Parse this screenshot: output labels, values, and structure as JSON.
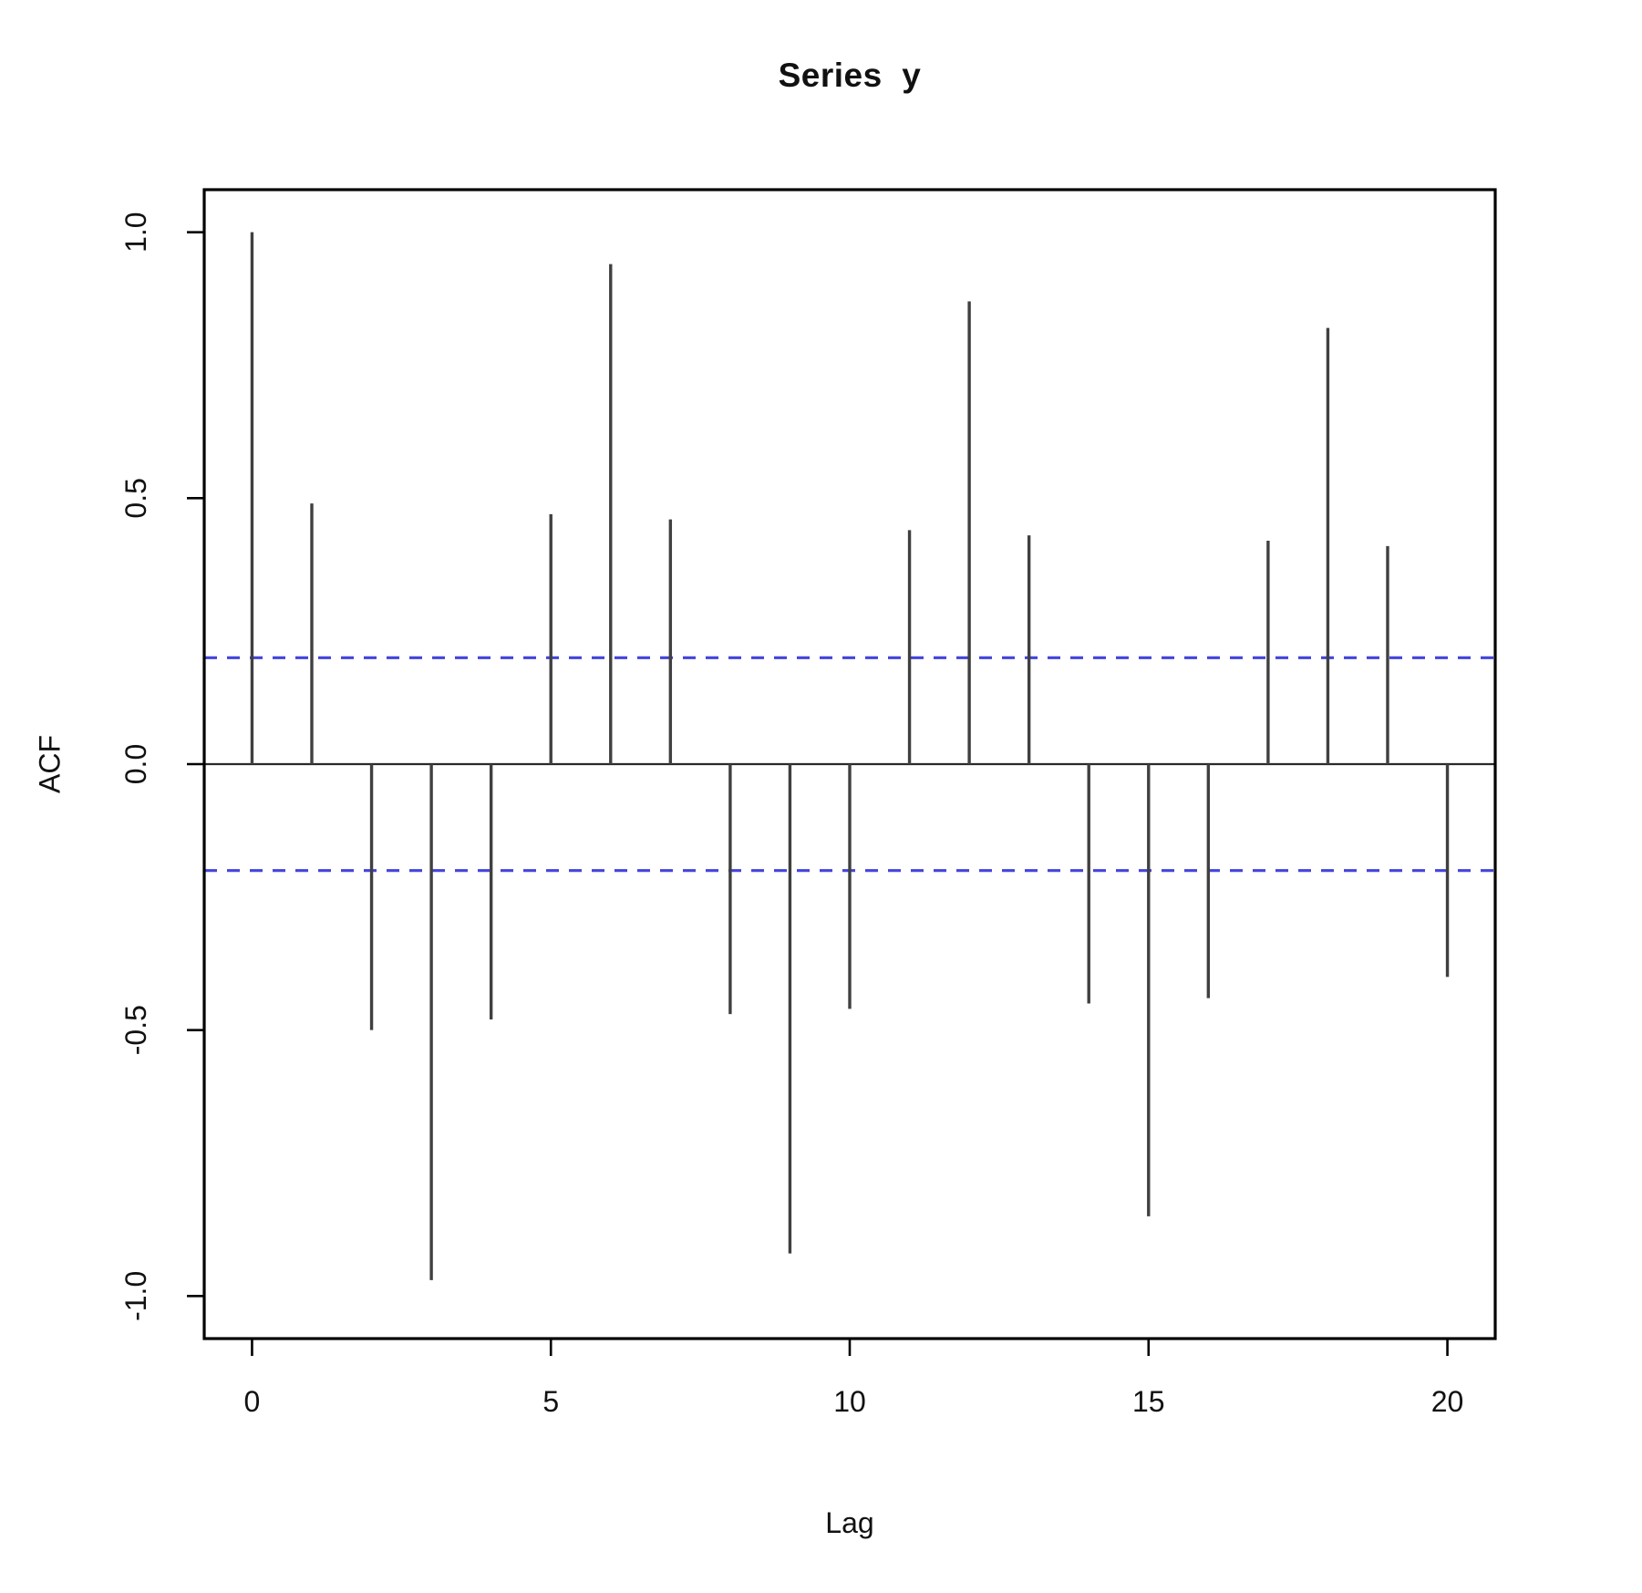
{
  "chart_data": {
    "type": "bar",
    "subtype": "acf-stem-plot",
    "title": "Series  y",
    "xlabel": "Lag",
    "ylabel": "ACF",
    "x": [
      0,
      1,
      2,
      3,
      4,
      5,
      6,
      7,
      8,
      9,
      10,
      11,
      12,
      13,
      14,
      15,
      16,
      17,
      18,
      19,
      20
    ],
    "values": [
      1.0,
      0.49,
      -0.5,
      -0.97,
      -0.48,
      0.47,
      0.94,
      0.46,
      -0.47,
      -0.92,
      -0.46,
      0.44,
      0.87,
      0.43,
      -0.45,
      -0.85,
      -0.44,
      0.42,
      0.82,
      0.41,
      -0.4
    ],
    "xlim": [
      -0.8,
      20.8
    ],
    "ylim": [
      -1.08,
      1.08
    ],
    "xticks": {
      "values": [
        0,
        5,
        10,
        15,
        20
      ],
      "labels": [
        "0",
        "5",
        "10",
        "15",
        "20"
      ]
    },
    "yticks": {
      "values": [
        1.0,
        0.5,
        0.0,
        -0.5,
        -1.0
      ],
      "labels": [
        "1.0",
        "0.5",
        "0.0",
        "-0.5",
        "-1.0"
      ]
    },
    "confidence_bounds": {
      "upper": 0.2,
      "lower": -0.2,
      "line_style": "dashed"
    },
    "grid": false,
    "legend": null,
    "baseline": 0,
    "colors": {
      "spike": "#404040",
      "frame": "#000000",
      "baseline_line": "#2a2a2a",
      "confidence": "#4444dd",
      "tick_text": "#111111",
      "background": "#ffffff"
    }
  }
}
